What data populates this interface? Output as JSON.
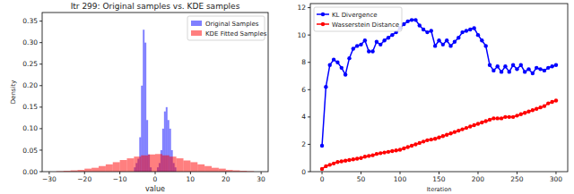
{
  "chart_data": [
    {
      "type": "histogram",
      "title": "Itr 299: Original samples vs. KDE samples",
      "x_label": "value",
      "y_label": "Density",
      "xlim": [
        -32,
        32
      ],
      "ylim": [
        0,
        0.37
      ],
      "xticks": [
        {
          "value": -30,
          "label": "−30"
        },
        {
          "value": -20,
          "label": "−20"
        },
        {
          "value": -10,
          "label": "−10"
        },
        0,
        10,
        20,
        30
      ],
      "yticks": [
        {
          "value": 0,
          "label": "0.00"
        },
        {
          "value": 0.05,
          "label": "0.05"
        },
        {
          "value": 0.1,
          "label": "0.10"
        },
        {
          "value": 0.15,
          "label": "0.15"
        },
        {
          "value": 0.2,
          "label": "0.20"
        },
        {
          "value": 0.25,
          "label": "0.25"
        },
        {
          "value": 0.3,
          "label": "0.30"
        },
        {
          "value": 0.35,
          "label": "0.35"
        }
      ],
      "legend": "upper right",
      "grid": false,
      "series": [
        {
          "name": "Original Samples",
          "color": "#0000ff",
          "bins": [
            -6,
            -5.5,
            -5,
            -4.5,
            -4,
            -3.5,
            -3,
            -2.5,
            -2,
            -1.5,
            -1,
            -0.5,
            0,
            0.5,
            1,
            1.5,
            2,
            2.5,
            3,
            3.5,
            4,
            4.5,
            5,
            5.5,
            6
          ],
          "values": [
            0.01,
            0.02,
            0.03,
            0.08,
            0.2,
            0.33,
            0.3,
            0.12,
            0.04,
            0.01,
            0,
            0,
            0,
            0.01,
            0.02,
            0.05,
            0.1,
            0.14,
            0.15,
            0.12,
            0.1,
            0.05,
            0.02,
            0.01
          ]
        },
        {
          "name": "KDE Fitted Samples",
          "color": "#ff0000",
          "bins": [
            -28,
            -26,
            -24,
            -22,
            -20,
            -18,
            -16,
            -14,
            -12,
            -10,
            -8,
            -6,
            -4,
            -2,
            0,
            2,
            4,
            6,
            8,
            10,
            12,
            14,
            16,
            18,
            20,
            22,
            24,
            26,
            28
          ],
          "values": [
            0.001,
            0.002,
            0.003,
            0.004,
            0.007,
            0.009,
            0.013,
            0.017,
            0.022,
            0.027,
            0.031,
            0.035,
            0.038,
            0.04,
            0.041,
            0.038,
            0.035,
            0.031,
            0.026,
            0.022,
            0.017,
            0.013,
            0.009,
            0.007,
            0.004,
            0.003,
            0.002,
            0.001
          ]
        }
      ]
    },
    {
      "type": "line",
      "x_label": "Iteration",
      "xlim": [
        -15,
        315
      ],
      "ylim": [
        0,
        12.3
      ],
      "xticks": [
        0,
        50,
        100,
        150,
        200,
        250,
        300
      ],
      "yticks": [
        0,
        2,
        4,
        6,
        8,
        10,
        12
      ],
      "legend": "upper left",
      "grid": false,
      "x": [
        0,
        5,
        10,
        15,
        20,
        25,
        30,
        35,
        40,
        45,
        50,
        55,
        60,
        65,
        70,
        75,
        80,
        85,
        90,
        95,
        100,
        105,
        110,
        115,
        120,
        125,
        130,
        135,
        140,
        145,
        150,
        155,
        160,
        165,
        170,
        175,
        180,
        185,
        190,
        195,
        200,
        205,
        210,
        215,
        220,
        225,
        230,
        235,
        240,
        245,
        250,
        255,
        260,
        265,
        270,
        275,
        280,
        285,
        290,
        295,
        300
      ],
      "series": [
        {
          "name": "KL Divergence",
          "color": "#0000ff",
          "marker": "circle",
          "values": [
            1.9,
            6.2,
            7.8,
            8.2,
            8.0,
            7.6,
            7.1,
            8.3,
            9.0,
            9.2,
            9.3,
            9.6,
            8.8,
            8.8,
            9.5,
            9.3,
            9.6,
            9.8,
            10.0,
            10.2,
            10.5,
            10.8,
            11.0,
            11.1,
            11.1,
            10.7,
            10.4,
            10.2,
            10.3,
            9.2,
            9.6,
            9.3,
            9.6,
            9.2,
            9.5,
            9.8,
            10.2,
            10.3,
            10.4,
            10.5,
            10.0,
            9.6,
            9.2,
            7.8,
            7.4,
            7.7,
            7.3,
            7.7,
            7.3,
            7.8,
            7.5,
            7.8,
            7.3,
            7.5,
            7.2,
            7.6,
            7.5,
            7.4,
            7.6,
            7.7,
            7.8
          ]
        },
        {
          "name": "Wasserstein Distance",
          "color": "#ff0000",
          "marker": "circle",
          "values": [
            0.2,
            0.4,
            0.5,
            0.6,
            0.7,
            0.75,
            0.8,
            0.85,
            0.9,
            0.95,
            1.0,
            1.1,
            1.15,
            1.2,
            1.3,
            1.35,
            1.4,
            1.45,
            1.5,
            1.55,
            1.6,
            1.7,
            1.8,
            1.9,
            2.0,
            2.1,
            2.2,
            2.3,
            2.35,
            2.4,
            2.5,
            2.6,
            2.7,
            2.8,
            2.9,
            3.0,
            3.1,
            3.2,
            3.3,
            3.4,
            3.5,
            3.6,
            3.7,
            3.8,
            3.9,
            3.9,
            3.9,
            4.0,
            4.0,
            4.0,
            4.1,
            4.2,
            4.3,
            4.4,
            4.5,
            4.6,
            4.7,
            4.8,
            5.0,
            5.1,
            5.2
          ]
        }
      ]
    }
  ]
}
